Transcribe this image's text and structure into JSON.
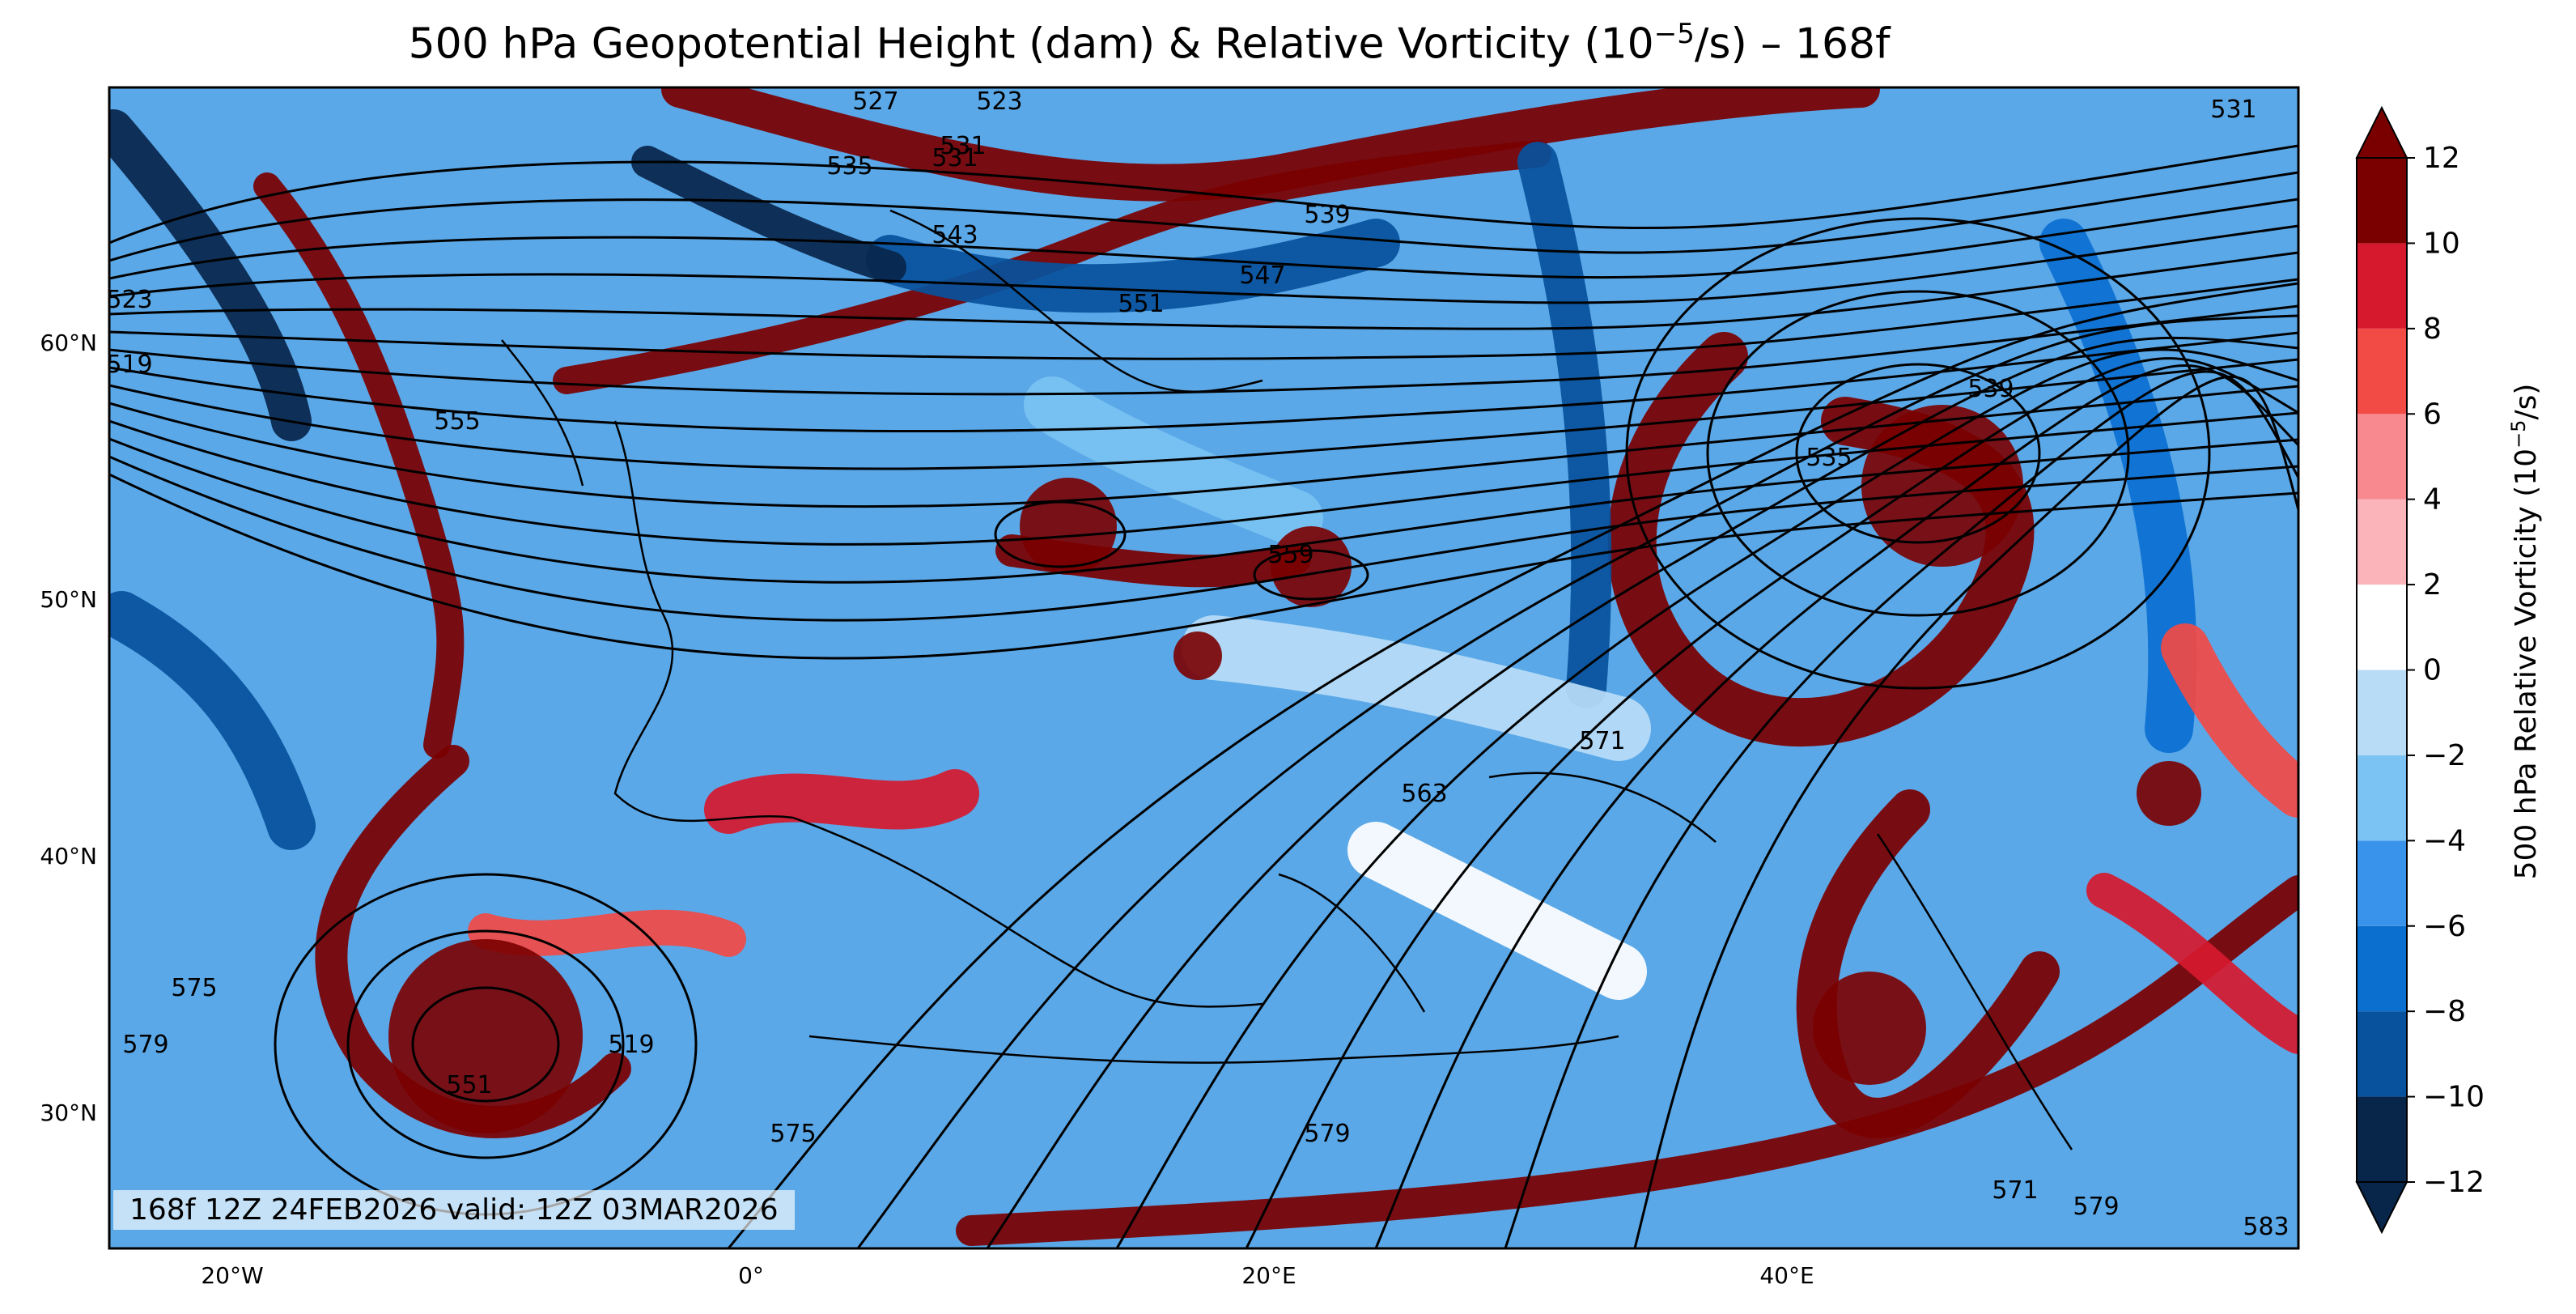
{
  "title": {
    "prefix": "500 hPa Geopotential Height (dam) & Relative Vorticity (10",
    "exponent": "−5",
    "suffix": "/s) – 168f"
  },
  "info_text": "168f 12Z 24FEB2026 valid: 12Z 03MAR2026",
  "colorbar": {
    "title_prefix": "500 hPa Relative Vorticity (10",
    "title_exponent": "−5",
    "title_suffix": "/s)",
    "levels": [
      -12,
      -10,
      -8,
      -6,
      -4,
      -2,
      0,
      2,
      4,
      6,
      8,
      10,
      12
    ],
    "colors": [
      "#08254a",
      "#08519c",
      "#0b6fd0",
      "#3a93ea",
      "#7ac3f2",
      "#b8dcf6",
      "#ffffff",
      "#fbb4b9",
      "#f7898f",
      "#f24a45",
      "#d7192e",
      "#7a0000"
    ],
    "extend": "both"
  },
  "axes": {
    "lon_ticks": [
      "20°W",
      "0°",
      "20°E",
      "40°E"
    ],
    "lat_ticks": [
      "60°N",
      "50°N",
      "40°N",
      "30°N"
    ]
  },
  "contour_labels": [
    "527",
    "523",
    "531",
    "535",
    "531",
    "539",
    "543",
    "547",
    "551",
    "555",
    "519",
    "523",
    "559",
    "539",
    "535",
    "563",
    "571",
    "575",
    "579",
    "575",
    "551",
    "519",
    "579",
    "571",
    "579",
    "583",
    "531"
  ]
}
